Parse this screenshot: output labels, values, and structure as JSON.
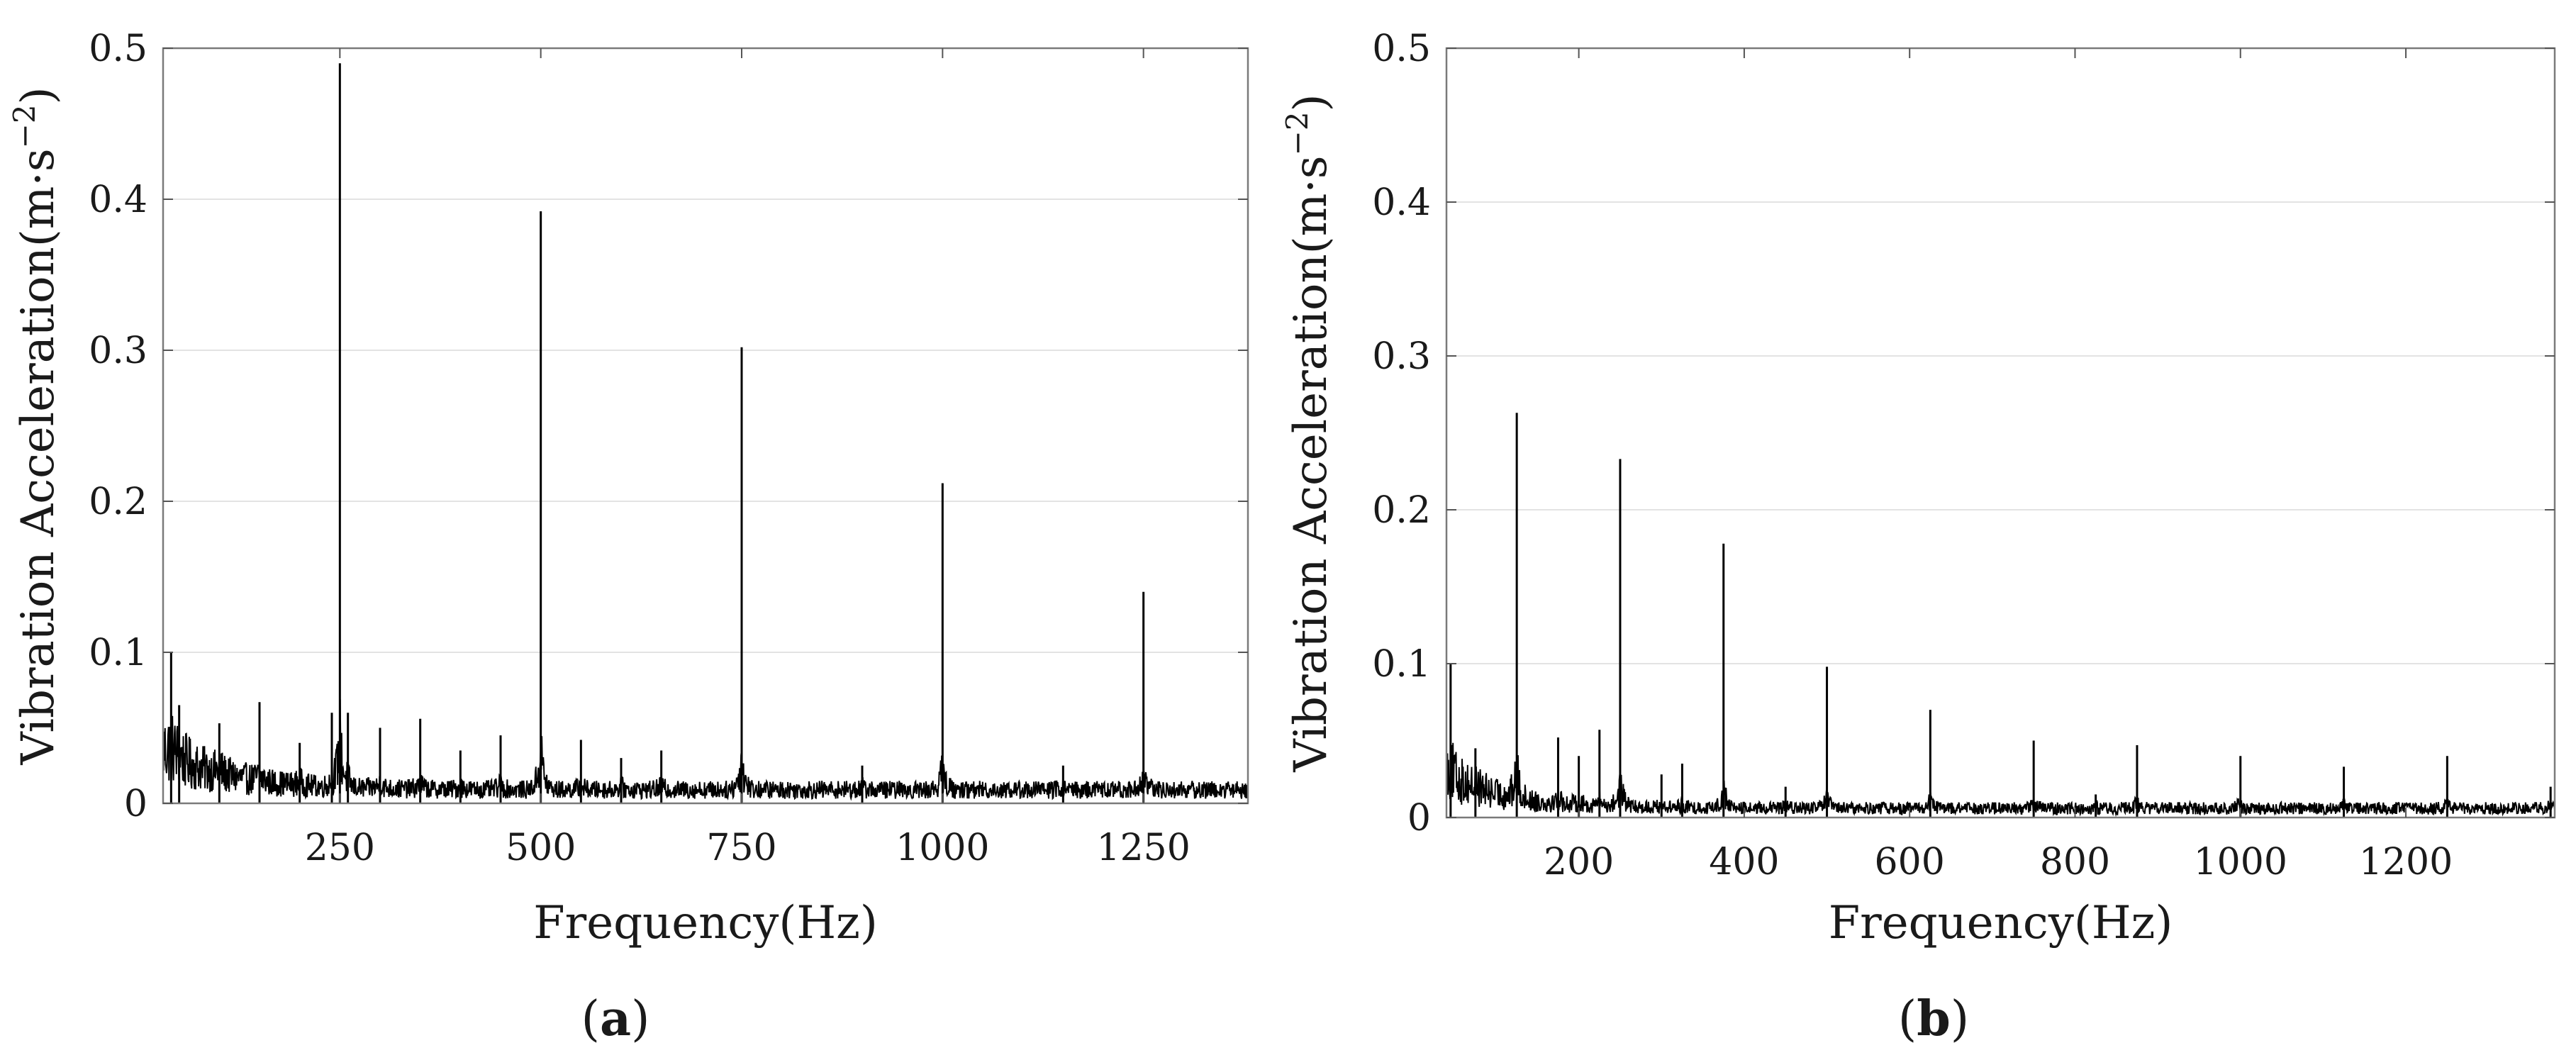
{
  "charts": [
    {
      "panel_prefix": "(",
      "panel_letter": "a",
      "panel_suffix": ")",
      "xlabel": "Frequency(Hz)",
      "ylabel_main": "Vibration  Acceleration(m·s",
      "ylabel_sup": "−2",
      "ylabel_end": ")",
      "xlim": [
        30,
        1380
      ],
      "ylim": [
        0,
        0.5
      ],
      "xticks": [
        {
          "v": 250,
          "label": "250"
        },
        {
          "v": 500,
          "label": "500"
        },
        {
          "v": 750,
          "label": "750"
        },
        {
          "v": 1000,
          "label": "1000"
        },
        {
          "v": 1250,
          "label": "1250"
        }
      ],
      "yticks": [
        {
          "v": 0,
          "label": "0"
        },
        {
          "v": 0.1,
          "label": "0.1"
        },
        {
          "v": 0.2,
          "label": "0.2"
        },
        {
          "v": 0.3,
          "label": "0.3"
        },
        {
          "v": 0.4,
          "label": "0.4"
        },
        {
          "v": 0.5,
          "label": "0.5"
        }
      ],
      "ygrid": true,
      "peaks": [
        {
          "x": 40,
          "y": 0.1
        },
        {
          "x": 50,
          "y": 0.065
        },
        {
          "x": 100,
          "y": 0.053
        },
        {
          "x": 150,
          "y": 0.067
        },
        {
          "x": 200,
          "y": 0.04
        },
        {
          "x": 240,
          "y": 0.06
        },
        {
          "x": 250,
          "y": 0.49
        },
        {
          "x": 260,
          "y": 0.06
        },
        {
          "x": 300,
          "y": 0.05
        },
        {
          "x": 350,
          "y": 0.056
        },
        {
          "x": 400,
          "y": 0.035
        },
        {
          "x": 450,
          "y": 0.045
        },
        {
          "x": 500,
          "y": 0.392
        },
        {
          "x": 550,
          "y": 0.042
        },
        {
          "x": 600,
          "y": 0.03
        },
        {
          "x": 650,
          "y": 0.035
        },
        {
          "x": 750,
          "y": 0.302
        },
        {
          "x": 900,
          "y": 0.025
        },
        {
          "x": 1000,
          "y": 0.212
        },
        {
          "x": 1150,
          "y": 0.025
        },
        {
          "x": 1250,
          "y": 0.14
        }
      ],
      "noise": {
        "base": 0.012,
        "low_freq_level": 0.035,
        "low_freq_decay": 80
      }
    },
    {
      "panel_prefix": "(",
      "panel_letter": "b",
      "panel_suffix": ")",
      "xlabel": "Frequency(Hz)",
      "ylabel_main": "Vibration  Acceleration(m·s",
      "ylabel_sup": "−2",
      "ylabel_end": ")",
      "xlim": [
        40,
        1380
      ],
      "ylim": [
        0,
        0.5
      ],
      "xticks": [
        {
          "v": 200,
          "label": "200"
        },
        {
          "v": 400,
          "label": "400"
        },
        {
          "v": 600,
          "label": "600"
        },
        {
          "v": 800,
          "label": "800"
        },
        {
          "v": 1000,
          "label": "1000"
        },
        {
          "v": 1200,
          "label": "1200"
        }
      ],
      "yticks": [
        {
          "v": 0,
          "label": "0"
        },
        {
          "v": 0.1,
          "label": "0.1"
        },
        {
          "v": 0.2,
          "label": "0.2"
        },
        {
          "v": 0.3,
          "label": "0.3"
        },
        {
          "v": 0.4,
          "label": "0.4"
        },
        {
          "v": 0.5,
          "label": "0.5"
        }
      ],
      "ygrid": true,
      "peaks": [
        {
          "x": 45,
          "y": 0.1
        },
        {
          "x": 75,
          "y": 0.045
        },
        {
          "x": 125,
          "y": 0.263
        },
        {
          "x": 175,
          "y": 0.052
        },
        {
          "x": 200,
          "y": 0.04
        },
        {
          "x": 225,
          "y": 0.057
        },
        {
          "x": 250,
          "y": 0.233
        },
        {
          "x": 300,
          "y": 0.028
        },
        {
          "x": 325,
          "y": 0.035
        },
        {
          "x": 375,
          "y": 0.178
        },
        {
          "x": 450,
          "y": 0.02
        },
        {
          "x": 500,
          "y": 0.098
        },
        {
          "x": 625,
          "y": 0.07
        },
        {
          "x": 750,
          "y": 0.05
        },
        {
          "x": 825,
          "y": 0.015
        },
        {
          "x": 875,
          "y": 0.047
        },
        {
          "x": 1000,
          "y": 0.04
        },
        {
          "x": 1125,
          "y": 0.033
        },
        {
          "x": 1250,
          "y": 0.04
        },
        {
          "x": 1375,
          "y": 0.02
        }
      ],
      "noise": {
        "base": 0.008,
        "low_freq_level": 0.03,
        "low_freq_decay": 70
      }
    }
  ],
  "chart_data": [
    {
      "type": "line",
      "xlabel": "Frequency(Hz)",
      "ylabel": "Vibration Acceleration(m·s−2)",
      "xlim": [
        30,
        1380
      ],
      "ylim": [
        0,
        0.5
      ],
      "grid": "horizontal",
      "series": [
        {
          "x": [
            40,
            50,
            100,
            150,
            200,
            240,
            250,
            260,
            300,
            350,
            400,
            450,
            500,
            550,
            600,
            650,
            750,
            900,
            1000,
            1150,
            1250
          ],
          "y": [
            0.1,
            0.065,
            0.053,
            0.067,
            0.04,
            0.06,
            0.49,
            0.06,
            0.05,
            0.056,
            0.035,
            0.045,
            0.392,
            0.042,
            0.03,
            0.035,
            0.302,
            0.025,
            0.212,
            0.025,
            0.14
          ]
        }
      ]
    },
    {
      "type": "line",
      "xlabel": "Frequency(Hz)",
      "ylabel": "Vibration Acceleration(m·s−2)",
      "xlim": [
        40,
        1380
      ],
      "ylim": [
        0,
        0.5
      ],
      "grid": "horizontal",
      "series": [
        {
          "x": [
            45,
            75,
            125,
            175,
            200,
            225,
            250,
            300,
            325,
            375,
            450,
            500,
            625,
            750,
            825,
            875,
            1000,
            1125,
            1250,
            1375
          ],
          "y": [
            0.1,
            0.045,
            0.263,
            0.052,
            0.04,
            0.057,
            0.233,
            0.028,
            0.035,
            0.178,
            0.02,
            0.098,
            0.07,
            0.05,
            0.015,
            0.047,
            0.04,
            0.033,
            0.04,
            0.02
          ]
        }
      ]
    }
  ]
}
